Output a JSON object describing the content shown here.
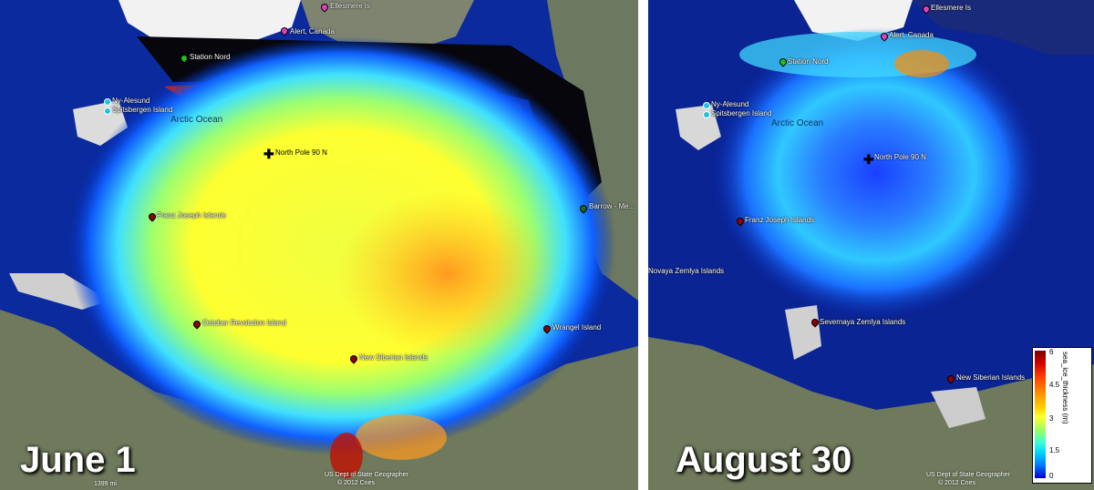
{
  "panels": [
    {
      "date": "June 1",
      "ocean_label": "Arctic Ocean",
      "markers": [
        {
          "name": "Ellesmere Is",
          "color": "#e040c0"
        },
        {
          "name": "Alert, Canada",
          "color": "#e040c0"
        },
        {
          "name": "Station Nord",
          "color": "#20c020"
        },
        {
          "name": "Ny-Alesund",
          "color": "#20c0e0"
        },
        {
          "name": "Spitsbergen Island",
          "color": "#20c0e0"
        },
        {
          "name": "North Pole 90 N",
          "color": "#000000"
        },
        {
          "name": "Franz Joseph Islands",
          "color": "#8b0000"
        },
        {
          "name": "October Revolution Island",
          "color": "#8b0000"
        },
        {
          "name": "New Siberian Islands",
          "color": "#8b0000"
        },
        {
          "name": "Barrow - Me...",
          "color": "#1a6a1a"
        },
        {
          "name": "Wrangel Island",
          "color": "#8b0000"
        }
      ],
      "credits": [
        "US Dept of State Geographer",
        "© 2012 Cnes"
      ],
      "scale_text": "1399 mi"
    },
    {
      "date": "August 30",
      "ocean_label": "Arctic Ocean",
      "markers": [
        {
          "name": "Ellesmere Is",
          "color": "#e040c0"
        },
        {
          "name": "Alert, Canada",
          "color": "#e040c0"
        },
        {
          "name": "Station Nord",
          "color": "#20c020"
        },
        {
          "name": "Ny-Alesund",
          "color": "#20c0e0"
        },
        {
          "name": "Spitsbergen Island",
          "color": "#20c0e0"
        },
        {
          "name": "North Pole 90 N",
          "color": "#000000"
        },
        {
          "name": "Franz Joseph Islands",
          "color": "#8b0000"
        },
        {
          "name": "Novaya Zemlya Islands",
          "color": "#8b0000"
        },
        {
          "name": "Severnaya Zemlya Islands",
          "color": "#8b0000"
        },
        {
          "name": "New Siberian Islands",
          "color": "#8b0000"
        }
      ],
      "credits": [
        "US Dept of State Geographer",
        "© 2012 Cnes"
      ]
    }
  ],
  "colorbar": {
    "title": "sea_ice_thickness (m)",
    "ticks": [
      "6",
      "4.5",
      "3",
      "1.5",
      "0"
    ],
    "range": [
      0,
      6
    ],
    "colors": [
      "#0000d0",
      "#00d4ff",
      "#3cffd2",
      "#ffff30",
      "#ff8c00",
      "#d40000",
      "#7a0000"
    ]
  }
}
